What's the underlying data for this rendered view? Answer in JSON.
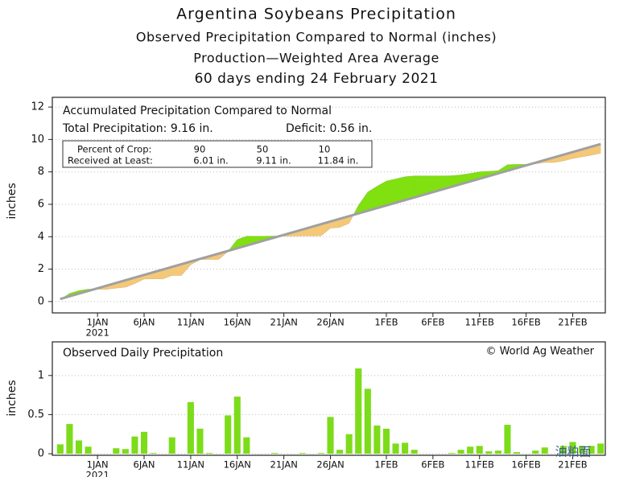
{
  "header": {
    "title": "Argentina Soybeans Precipitation",
    "subtitles": [
      "Observed Precipitation Compared to Normal (inches)",
      "Production—Weighted Area Average",
      "60 days ending 24 February 2021"
    ]
  },
  "watermark": "油粕面",
  "chart_data": [
    {
      "type": "area",
      "title": "Accumulated Precipitation Compared to Normal",
      "annotations": [
        "Total Precipitation: 9.16 in.",
        "Deficit: 0.56 in."
      ],
      "crop_table": {
        "row_labels": [
          "Percent of Crop:",
          "Received at Least:"
        ],
        "percent": [
          90,
          50,
          10
        ],
        "received": [
          6.01,
          9.11,
          11.84
        ],
        "received_labels": [
          "6.01 in.",
          "9.11 in.",
          "11.84 in."
        ]
      },
      "y_label": "inches",
      "x": [
        -4,
        -3,
        -2,
        -1,
        0,
        1,
        2,
        3,
        4,
        5,
        6,
        7,
        8,
        9,
        10,
        11,
        12,
        13,
        14,
        15,
        16,
        17,
        18,
        19,
        20,
        21,
        22,
        23,
        24,
        25,
        26,
        27,
        28,
        29,
        30,
        31,
        32,
        33,
        34,
        35,
        36,
        37,
        38,
        39,
        40,
        41,
        42,
        43,
        44,
        45,
        46,
        47,
        48,
        49,
        50,
        51,
        52,
        53,
        54
      ],
      "series": [
        {
          "name": "Observed",
          "color": "#80e010",
          "below_color": "#f5c878",
          "values": [
            0.12,
            0.5,
            0.67,
            0.76,
            0.76,
            0.76,
            0.83,
            0.89,
            1.11,
            1.39,
            1.4,
            1.4,
            1.61,
            1.61,
            2.27,
            2.59,
            2.6,
            2.6,
            3.09,
            3.82,
            4.03,
            4.03,
            4.03,
            4.04,
            4.04,
            4.04,
            4.05,
            4.05,
            4.06,
            4.53,
            4.58,
            4.83,
            5.92,
            6.75,
            7.11,
            7.43,
            7.56,
            7.7,
            7.75,
            7.75,
            7.75,
            7.75,
            7.76,
            7.81,
            7.9,
            8.0,
            8.03,
            8.07,
            8.44,
            8.46,
            8.46,
            8.5,
            8.58,
            8.58,
            8.68,
            8.83,
            8.93,
            9.03,
            9.16
          ]
        },
        {
          "name": "Normal",
          "color": "#a0a0a0",
          "x": [
            -4,
            54
          ],
          "values": [
            0.16,
            9.72
          ]
        }
      ],
      "xlim": [
        -4.85,
        54.5
      ],
      "xticks": [
        {
          "value": 0,
          "label": "1JAN"
        },
        {
          "value": 5,
          "label": "6JAN"
        },
        {
          "value": 10,
          "label": "11JAN"
        },
        {
          "value": 15,
          "label": "16JAN"
        },
        {
          "value": 20,
          "label": "21JAN"
        },
        {
          "value": 25,
          "label": "26JAN"
        },
        {
          "value": 31,
          "label": "1FEB"
        },
        {
          "value": 36,
          "label": "6FEB"
        },
        {
          "value": 41,
          "label": "11FEB"
        },
        {
          "value": 46,
          "label": "16FEB"
        },
        {
          "value": 51,
          "label": "21FEB"
        }
      ],
      "x_year_label": "2021",
      "ylim": [
        -0.7,
        12.6
      ],
      "yticks": [
        0,
        2,
        4,
        6,
        8,
        10,
        12
      ],
      "grid": true
    },
    {
      "type": "bar",
      "title": "Observed Daily Precipitation",
      "credit": "© World Ag Weather",
      "y_label": "inches",
      "x": [
        -4,
        -3,
        -2,
        -1,
        0,
        1,
        2,
        3,
        4,
        5,
        6,
        7,
        8,
        9,
        10,
        11,
        12,
        13,
        14,
        15,
        16,
        17,
        18,
        19,
        20,
        21,
        22,
        23,
        24,
        25,
        26,
        27,
        28,
        29,
        30,
        31,
        32,
        33,
        34,
        35,
        36,
        37,
        38,
        39,
        40,
        41,
        42,
        43,
        44,
        45,
        46,
        47,
        48,
        49,
        50,
        51,
        52,
        53,
        54
      ],
      "values": [
        0.12,
        0.38,
        0.17,
        0.09,
        0,
        0,
        0.07,
        0.06,
        0.22,
        0.28,
        0.01,
        0,
        0.21,
        0,
        0.66,
        0.32,
        0.01,
        0,
        0.49,
        0.73,
        0.21,
        0,
        0,
        0.01,
        0,
        0,
        0.01,
        0,
        0.01,
        0.47,
        0.05,
        0.25,
        1.09,
        0.83,
        0.36,
        0.32,
        0.13,
        0.14,
        0.05,
        0,
        0,
        0,
        0.01,
        0.05,
        0.09,
        0.1,
        0.03,
        0.04,
        0.37,
        0.02,
        0,
        0.04,
        0.08,
        0,
        0.1,
        0.15,
        0.1,
        0.1,
        0.13
      ],
      "color": "#7ddc1a",
      "xlim": [
        -4.85,
        54.5
      ],
      "xticks": [
        {
          "value": 0,
          "label": "1JAN"
        },
        {
          "value": 5,
          "label": "6JAN"
        },
        {
          "value": 10,
          "label": "11JAN"
        },
        {
          "value": 15,
          "label": "16JAN"
        },
        {
          "value": 20,
          "label": "21JAN"
        },
        {
          "value": 25,
          "label": "26JAN"
        },
        {
          "value": 31,
          "label": "1FEB"
        },
        {
          "value": 36,
          "label": "6FEB"
        },
        {
          "value": 41,
          "label": "11FEB"
        },
        {
          "value": 46,
          "label": "16FEB"
        },
        {
          "value": 51,
          "label": "21FEB"
        }
      ],
      "x_year_label": "2021",
      "ylim": [
        -0.02,
        1.43
      ],
      "yticks": [
        0,
        0.5,
        1
      ],
      "grid": true
    }
  ]
}
